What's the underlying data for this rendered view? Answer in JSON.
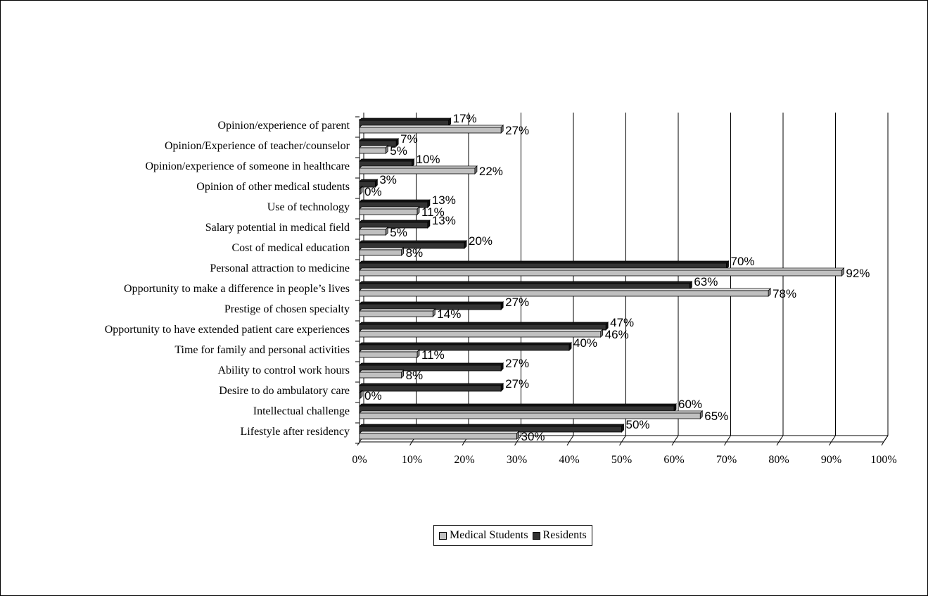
{
  "chart_data": {
    "type": "bar",
    "orientation": "horizontal",
    "categories": [
      "Opinion/experience of parent",
      "Opinion/Experience of teacher/counselor",
      "Opinion/experience of someone in healthcare",
      "Opinion of other medical students",
      "Use of technology",
      "Salary potential in medical field",
      "Cost of medical education",
      "Personal attraction to medicine",
      "Opportunity to make a difference in people’s lives",
      "Prestige of chosen specialty",
      "Opportunity to have extended patient care experiences",
      "Time for family and personal activities",
      "Ability to control work hours",
      "Desire to do ambulatory care",
      "Intellectual challenge",
      "Lifestyle after residency"
    ],
    "series": [
      {
        "name": "Medical Students",
        "color": "#c0c0c0",
        "values": [
          27,
          5,
          22,
          0,
          11,
          5,
          8,
          92,
          78,
          14,
          46,
          11,
          8,
          0,
          65,
          30
        ],
        "labels": [
          "27%",
          "5%",
          "22%",
          "0%",
          "11%",
          "5%",
          "8%",
          "92%",
          "78%",
          "14%",
          "46%",
          "11%",
          "8%",
          "0%",
          "65%",
          "30%"
        ]
      },
      {
        "name": "Residents",
        "color": "#333333",
        "values": [
          17,
          7,
          10,
          3,
          13,
          13,
          20,
          70,
          63,
          27,
          47,
          40,
          27,
          27,
          60,
          50
        ],
        "labels": [
          "17%",
          "7%",
          "10%",
          "3%",
          "13%",
          "13%",
          "20%",
          "70%",
          "63%",
          "27%",
          "47%",
          "40%",
          "27%",
          "27%",
          "60%",
          "50%"
        ]
      }
    ],
    "x_ticks": [
      "0%",
      "10%",
      "20%",
      "30%",
      "40%",
      "50%",
      "60%",
      "70%",
      "80%",
      "90%",
      "100%"
    ],
    "xlim": [
      0,
      100
    ],
    "grid": "vertical",
    "legend_position": "bottom"
  }
}
